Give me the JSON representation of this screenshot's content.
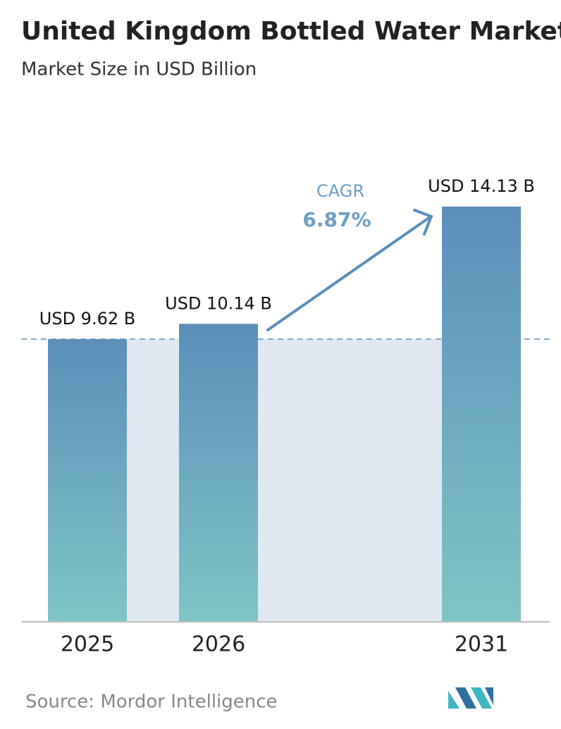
{
  "chart_data": {
    "type": "bar",
    "title": "United Kingdom Bottled Water Market",
    "subtitle": "Market Size in USD Billion",
    "categories": [
      "2025",
      "2026",
      "2031"
    ],
    "values": [
      9.62,
      10.14,
      14.13
    ],
    "value_labels": [
      "USD 9.62 B",
      "USD 10.14 B",
      "USD 14.13 B"
    ],
    "annotation": {
      "label": "CAGR",
      "value": "6.87%"
    },
    "source": "Source: Mordor Intelligence"
  }
}
